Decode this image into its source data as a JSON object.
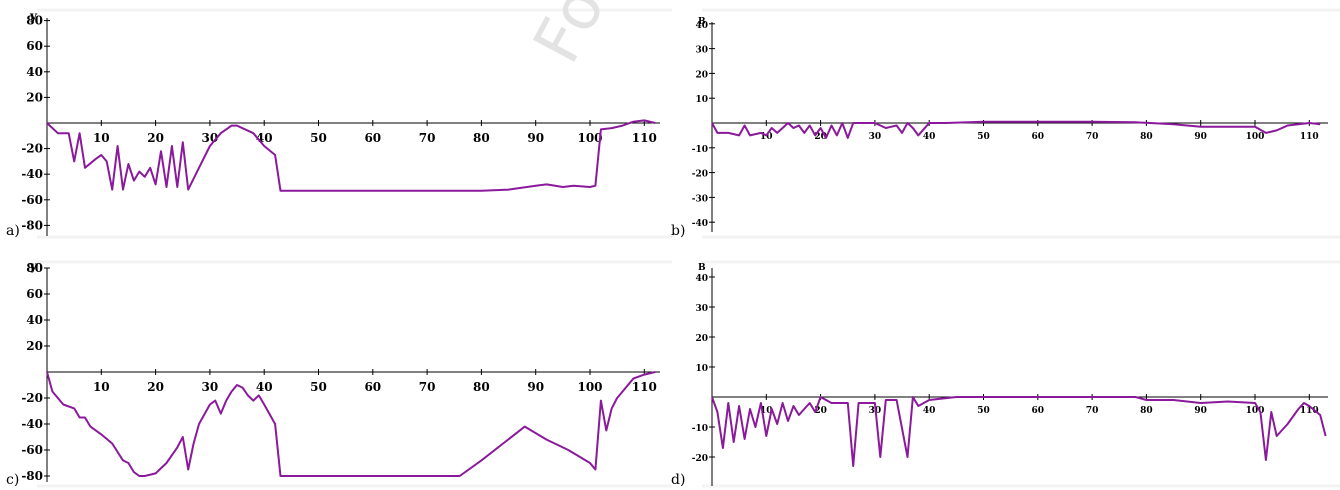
{
  "colors": {
    "series": "#8a1a9b",
    "axis": "#000000",
    "panel_bg": "#f3f3f3"
  },
  "watermark": "For personal use only -",
  "chart_data": [
    {
      "panel": "a)",
      "type": "line",
      "ylabel": "y",
      "xlim": [
        0,
        114
      ],
      "ylim": [
        -80,
        90
      ],
      "xticks": [
        10,
        20,
        30,
        40,
        50,
        60,
        70,
        80,
        90,
        100,
        110
      ],
      "yticks": [
        80,
        60,
        40,
        20,
        -20,
        -40,
        -60,
        -80
      ],
      "series": [
        {
          "points": [
            [
              0,
              0
            ],
            [
              2,
              -8
            ],
            [
              4,
              -8
            ],
            [
              5,
              -30
            ],
            [
              6,
              -8
            ],
            [
              7,
              -35
            ],
            [
              9,
              -28
            ],
            [
              10,
              -25
            ],
            [
              11,
              -30
            ],
            [
              12,
              -52
            ],
            [
              13,
              -18
            ],
            [
              14,
              -52
            ],
            [
              15,
              -32
            ],
            [
              16,
              -45
            ],
            [
              17,
              -38
            ],
            [
              18,
              -42
            ],
            [
              19,
              -35
            ],
            [
              20,
              -48
            ],
            [
              21,
              -22
            ],
            [
              22,
              -50
            ],
            [
              23,
              -18
            ],
            [
              24,
              -50
            ],
            [
              25,
              -15
            ],
            [
              26,
              -52
            ],
            [
              28,
              -35
            ],
            [
              30,
              -18
            ],
            [
              32,
              -8
            ],
            [
              34,
              -2
            ],
            [
              35,
              -2
            ],
            [
              38,
              -8
            ],
            [
              40,
              -18
            ],
            [
              42,
              -25
            ],
            [
              43,
              -53
            ],
            [
              50,
              -53
            ],
            [
              60,
              -53
            ],
            [
              70,
              -53
            ],
            [
              80,
              -53
            ],
            [
              85,
              -52
            ],
            [
              90,
              -49
            ],
            [
              92,
              -48
            ],
            [
              95,
              -50
            ],
            [
              97,
              -49
            ],
            [
              100,
              -50
            ],
            [
              101,
              -49
            ],
            [
              102,
              -5
            ],
            [
              104,
              -4
            ],
            [
              106,
              -2
            ],
            [
              108,
              1
            ],
            [
              110,
              2
            ],
            [
              112,
              0
            ]
          ]
        }
      ]
    },
    {
      "panel": "b)",
      "type": "line",
      "ylabel": "B",
      "xlim": [
        0,
        114
      ],
      "ylim": [
        -42,
        44
      ],
      "xticks": [
        10,
        20,
        30,
        40,
        50,
        60,
        70,
        80,
        90,
        100,
        110
      ],
      "yticks": [
        40,
        30,
        20,
        10,
        -10,
        -20,
        -30,
        -40
      ],
      "series": [
        {
          "points": [
            [
              0,
              0
            ],
            [
              1,
              -4
            ],
            [
              3,
              -4
            ],
            [
              5,
              -5
            ],
            [
              6,
              -1
            ],
            [
              7,
              -5
            ],
            [
              9,
              -4
            ],
            [
              10,
              -5
            ],
            [
              11,
              -2
            ],
            [
              12,
              -4
            ],
            [
              13,
              -2
            ],
            [
              14,
              0
            ],
            [
              15,
              -2
            ],
            [
              16,
              -1
            ],
            [
              17,
              -4
            ],
            [
              18,
              -1
            ],
            [
              19,
              -5
            ],
            [
              20,
              -2
            ],
            [
              21,
              -6
            ],
            [
              22,
              -1
            ],
            [
              23,
              -5
            ],
            [
              24,
              0
            ],
            [
              25,
              -6
            ],
            [
              26,
              0
            ],
            [
              30,
              0
            ],
            [
              32,
              -2
            ],
            [
              34,
              -1
            ],
            [
              35,
              -4
            ],
            [
              36,
              0
            ],
            [
              37,
              -2
            ],
            [
              38,
              -5
            ],
            [
              40,
              0
            ],
            [
              43,
              0
            ],
            [
              50,
              0.5
            ],
            [
              60,
              0.5
            ],
            [
              70,
              0.5
            ],
            [
              78,
              0.3
            ],
            [
              85,
              -0.5
            ],
            [
              90,
              -1.5
            ],
            [
              95,
              -1.5
            ],
            [
              100,
              -1.5
            ],
            [
              102,
              -4
            ],
            [
              104,
              -3
            ],
            [
              106,
              -1
            ],
            [
              108,
              -0.5
            ],
            [
              110,
              0
            ],
            [
              112,
              -0.5
            ]
          ]
        }
      ]
    },
    {
      "panel": "c)",
      "type": "line",
      "ylabel": "y",
      "xlim": [
        0,
        114
      ],
      "ylim": [
        -80,
        90
      ],
      "xticks": [
        10,
        20,
        30,
        40,
        50,
        60,
        70,
        80,
        90,
        100,
        110
      ],
      "yticks": [
        80,
        60,
        40,
        20,
        -20,
        -40,
        -60,
        -80
      ],
      "series": [
        {
          "points": [
            [
              0,
              0
            ],
            [
              1,
              -15
            ],
            [
              3,
              -25
            ],
            [
              5,
              -28
            ],
            [
              6,
              -35
            ],
            [
              7,
              -35
            ],
            [
              8,
              -42
            ],
            [
              10,
              -48
            ],
            [
              12,
              -55
            ],
            [
              14,
              -68
            ],
            [
              15,
              -70
            ],
            [
              16,
              -77
            ],
            [
              17,
              -80
            ],
            [
              18,
              -80
            ],
            [
              20,
              -78
            ],
            [
              22,
              -70
            ],
            [
              24,
              -58
            ],
            [
              25,
              -50
            ],
            [
              26,
              -75
            ],
            [
              27,
              -55
            ],
            [
              28,
              -40
            ],
            [
              30,
              -25
            ],
            [
              31,
              -22
            ],
            [
              32,
              -32
            ],
            [
              33,
              -22
            ],
            [
              34,
              -15
            ],
            [
              35,
              -10
            ],
            [
              36,
              -12
            ],
            [
              37,
              -18
            ],
            [
              38,
              -22
            ],
            [
              39,
              -18
            ],
            [
              40,
              -25
            ],
            [
              42,
              -40
            ],
            [
              43,
              -80
            ],
            [
              50,
              -80
            ],
            [
              60,
              -80
            ],
            [
              70,
              -80
            ],
            [
              76,
              -80
            ],
            [
              80,
              -68
            ],
            [
              84,
              -55
            ],
            [
              88,
              -42
            ],
            [
              92,
              -52
            ],
            [
              96,
              -60
            ],
            [
              100,
              -70
            ],
            [
              101,
              -75
            ],
            [
              102,
              -22
            ],
            [
              103,
              -45
            ],
            [
              104,
              -28
            ],
            [
              105,
              -20
            ],
            [
              106,
              -15
            ],
            [
              108,
              -5
            ],
            [
              110,
              -2
            ],
            [
              112,
              0
            ]
          ]
        }
      ]
    },
    {
      "panel": "d)",
      "type": "line",
      "ylabel": "B",
      "xlim": [
        0,
        114
      ],
      "ylim": [
        -26,
        44
      ],
      "xticks": [
        10,
        20,
        30,
        40,
        50,
        60,
        70,
        80,
        90,
        100,
        110
      ],
      "yticks": [
        40,
        30,
        20,
        10,
        -10,
        -20
      ],
      "series": [
        {
          "points": [
            [
              0,
              0
            ],
            [
              1,
              -5
            ],
            [
              2,
              -17
            ],
            [
              3,
              -2
            ],
            [
              4,
              -15
            ],
            [
              5,
              -3
            ],
            [
              6,
              -14
            ],
            [
              7,
              -4
            ],
            [
              8,
              -10
            ],
            [
              9,
              -2
            ],
            [
              10,
              -13
            ],
            [
              11,
              -4
            ],
            [
              12,
              -9
            ],
            [
              13,
              -2
            ],
            [
              14,
              -8
            ],
            [
              15,
              -3
            ],
            [
              16,
              -6
            ],
            [
              18,
              -2
            ],
            [
              19,
              -5
            ],
            [
              20,
              0
            ],
            [
              22,
              -2
            ],
            [
              24,
              -2
            ],
            [
              25,
              -2
            ],
            [
              26,
              -23
            ],
            [
              27,
              -2
            ],
            [
              30,
              -2
            ],
            [
              31,
              -20
            ],
            [
              32,
              -1
            ],
            [
              34,
              -1
            ],
            [
              36,
              -20
            ],
            [
              37,
              0
            ],
            [
              38,
              -3
            ],
            [
              40,
              -1
            ],
            [
              45,
              0
            ],
            [
              50,
              0
            ],
            [
              60,
              0
            ],
            [
              70,
              0
            ],
            [
              78,
              0
            ],
            [
              80,
              -1
            ],
            [
              85,
              -1
            ],
            [
              90,
              -2
            ],
            [
              95,
              -1.5
            ],
            [
              100,
              -2
            ],
            [
              101,
              -5
            ],
            [
              102,
              -21
            ],
            [
              103,
              -5
            ],
            [
              104,
              -13
            ],
            [
              106,
              -9
            ],
            [
              108,
              -4
            ],
            [
              109,
              -2
            ],
            [
              110,
              -3
            ],
            [
              112,
              -6
            ],
            [
              113,
              -13
            ]
          ]
        }
      ]
    }
  ]
}
